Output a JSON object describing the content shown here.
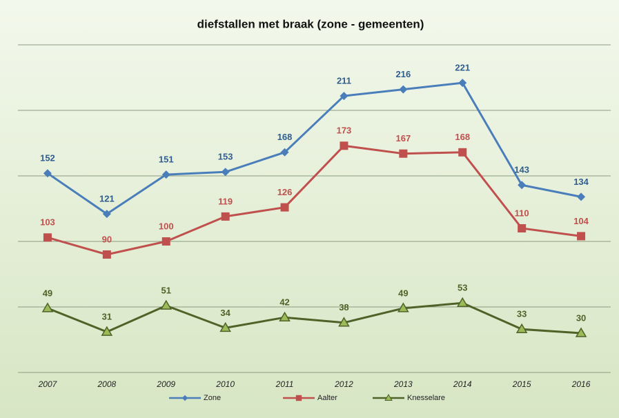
{
  "chart_data": {
    "type": "line",
    "title": "diefstallen met braak (zone - gemeenten)",
    "categories": [
      "2007",
      "2008",
      "2009",
      "2010",
      "2011",
      "2012",
      "2013",
      "2014",
      "2015",
      "2016"
    ],
    "series": [
      {
        "name": "Zone",
        "color": "#4a7ebb",
        "label_color": "#2f5d8f",
        "marker": "diamond",
        "values": [
          152,
          121,
          151,
          153,
          168,
          211,
          216,
          221,
          143,
          134
        ]
      },
      {
        "name": "Aalter",
        "color": "#c0504d",
        "label_color": "#c0504d",
        "marker": "square",
        "values": [
          103,
          90,
          100,
          119,
          126,
          173,
          167,
          168,
          110,
          104
        ]
      },
      {
        "name": "Knesselare",
        "color": "#4f6228",
        "label_color": "#4f6228",
        "marker": "triangle",
        "values": [
          49,
          31,
          51,
          34,
          42,
          38,
          49,
          53,
          33,
          30
        ]
      }
    ],
    "ylim": [
      0,
      250
    ],
    "yticks": [
      0,
      50,
      100,
      150,
      200,
      250
    ],
    "grid": true,
    "legend": "bottom"
  }
}
